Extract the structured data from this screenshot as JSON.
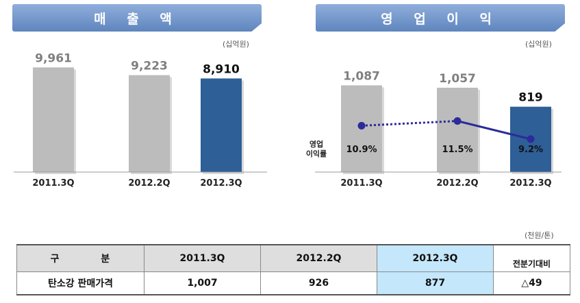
{
  "left_panel": {
    "title": "매 출 액",
    "unit": "(십억원)"
  },
  "right_panel": {
    "title": "영 업 이 익",
    "unit": "(십억원)",
    "margin_label_line1": "영업",
    "margin_label_line2": "이익률"
  },
  "chart_data": [
    {
      "type": "bar",
      "title": "매 출 액",
      "unit": "(십억원)",
      "categories": [
        "2011.3Q",
        "2012.2Q",
        "2012.3Q"
      ],
      "values": [
        9961,
        9223,
        8910
      ],
      "value_labels": [
        "9,961",
        "9,223",
        "8,910"
      ],
      "ylim": [
        0,
        10700
      ],
      "grid": false,
      "highlight_index": 2,
      "colors": {
        "bar": "#bcbcbc",
        "highlight": "#2e5f97"
      }
    },
    {
      "type": "bar",
      "title": "영 업 이 익",
      "unit": "(십억원)",
      "categories": [
        "2011.3Q",
        "2012.2Q",
        "2012.3Q"
      ],
      "values": [
        1087,
        1057,
        819
      ],
      "value_labels": [
        "1,087",
        "1,057",
        "819"
      ],
      "ylim": [
        0,
        1280
      ],
      "grid": false,
      "highlight_index": 2,
      "colors": {
        "bar": "#bcbcbc",
        "highlight": "#2e5f97",
        "line": "#2b2b9a"
      },
      "line_series": {
        "name": "영업이익률",
        "values": [
          10.9,
          11.5,
          9.2
        ],
        "labels": [
          "10.9%",
          "11.5%",
          "9.2%"
        ],
        "ylim": [
          5,
          18
        ]
      }
    }
  ],
  "table": {
    "unit": "(천원/톤)",
    "header": {
      "label": "구 분",
      "cols": [
        "2011.3Q",
        "2012.2Q",
        "2012.3Q"
      ],
      "compare": "전분기대비"
    },
    "row": {
      "label": "탄소강 판매가격",
      "values": [
        "1,007",
        "926",
        "877"
      ],
      "compare": "△49"
    }
  }
}
